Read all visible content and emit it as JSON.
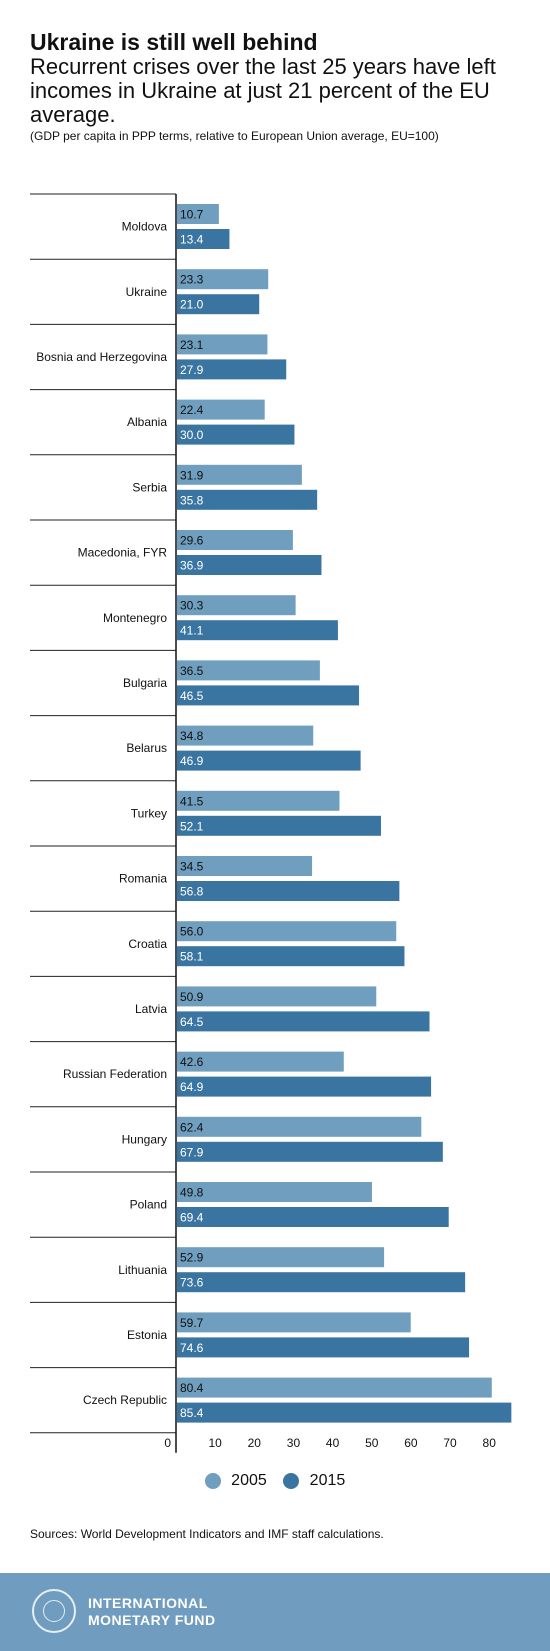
{
  "header": {
    "title": "Ukraine is still well behind",
    "subtitle": "Recurrent crises over the last 25 years have left incomes in Ukraine at just 21 percent of the EU average.",
    "note": "(GDP per capita in PPP terms, relative to European Union average, EU=100)"
  },
  "chart_data": {
    "type": "bar",
    "orientation": "horizontal",
    "title": "Ukraine is still well behind",
    "xlabel": "",
    "ylabel": "",
    "xlim": [
      0,
      86
    ],
    "x_ticks": [
      "0",
      "10",
      "20",
      "30",
      "40",
      "50",
      "60",
      "70",
      "80"
    ],
    "grid": false,
    "legend_position": "bottom",
    "categories": [
      "Moldova",
      "Ukraine",
      "Bosnia and Herzegovina",
      "Albania",
      "Serbia",
      "Macedonia, FYR",
      "Montenegro",
      "Bulgaria",
      "Belarus",
      "Turkey",
      "Romania",
      "Croatia",
      "Latvia",
      "Russian Federation",
      "Hungary",
      "Poland",
      "Lithuania",
      "Estonia",
      "Czech Republic"
    ],
    "series": [
      {
        "name": "2005",
        "color": "#709ebf",
        "values": [
          10.7,
          23.3,
          23.1,
          22.4,
          31.9,
          29.6,
          30.3,
          36.5,
          34.8,
          41.5,
          34.5,
          56.0,
          50.9,
          42.6,
          62.4,
          49.8,
          52.9,
          59.7,
          80.4
        ],
        "labels": [
          "10.7",
          "23.3",
          "23.1",
          "22.4",
          "31.9",
          "29.6",
          "30.3",
          "36.5",
          "34.8",
          "41.5",
          "34.5",
          "56.0",
          "50.9",
          "42.6",
          "62.4",
          "49.8",
          "52.9",
          "59.7",
          "80.4"
        ]
      },
      {
        "name": "2015",
        "color": "#3a74a0",
        "values": [
          13.4,
          21.0,
          27.9,
          30.0,
          35.8,
          36.9,
          41.1,
          46.5,
          46.9,
          52.1,
          56.8,
          58.1,
          64.5,
          64.9,
          67.9,
          69.4,
          73.6,
          74.6,
          85.4
        ],
        "labels": [
          "13.4",
          "21.0",
          "27.9",
          "30.0",
          "35.8",
          "36.9",
          "41.1",
          "46.5",
          "46.9",
          "52.1",
          "56.8",
          "58.1",
          "64.5",
          "64.9",
          "67.9",
          "69.4",
          "73.6",
          "74.6",
          "85.4"
        ]
      }
    ]
  },
  "source": "Sources: World Development Indicators and IMF staff calculations.",
  "footer": {
    "brand_line1": "INTERNATIONAL",
    "brand_line2": "MONETARY FUND"
  },
  "colors": {
    "series_2005": "#709ebf",
    "series_2015": "#3a74a0",
    "footer_bg": "#6f9cbf"
  }
}
